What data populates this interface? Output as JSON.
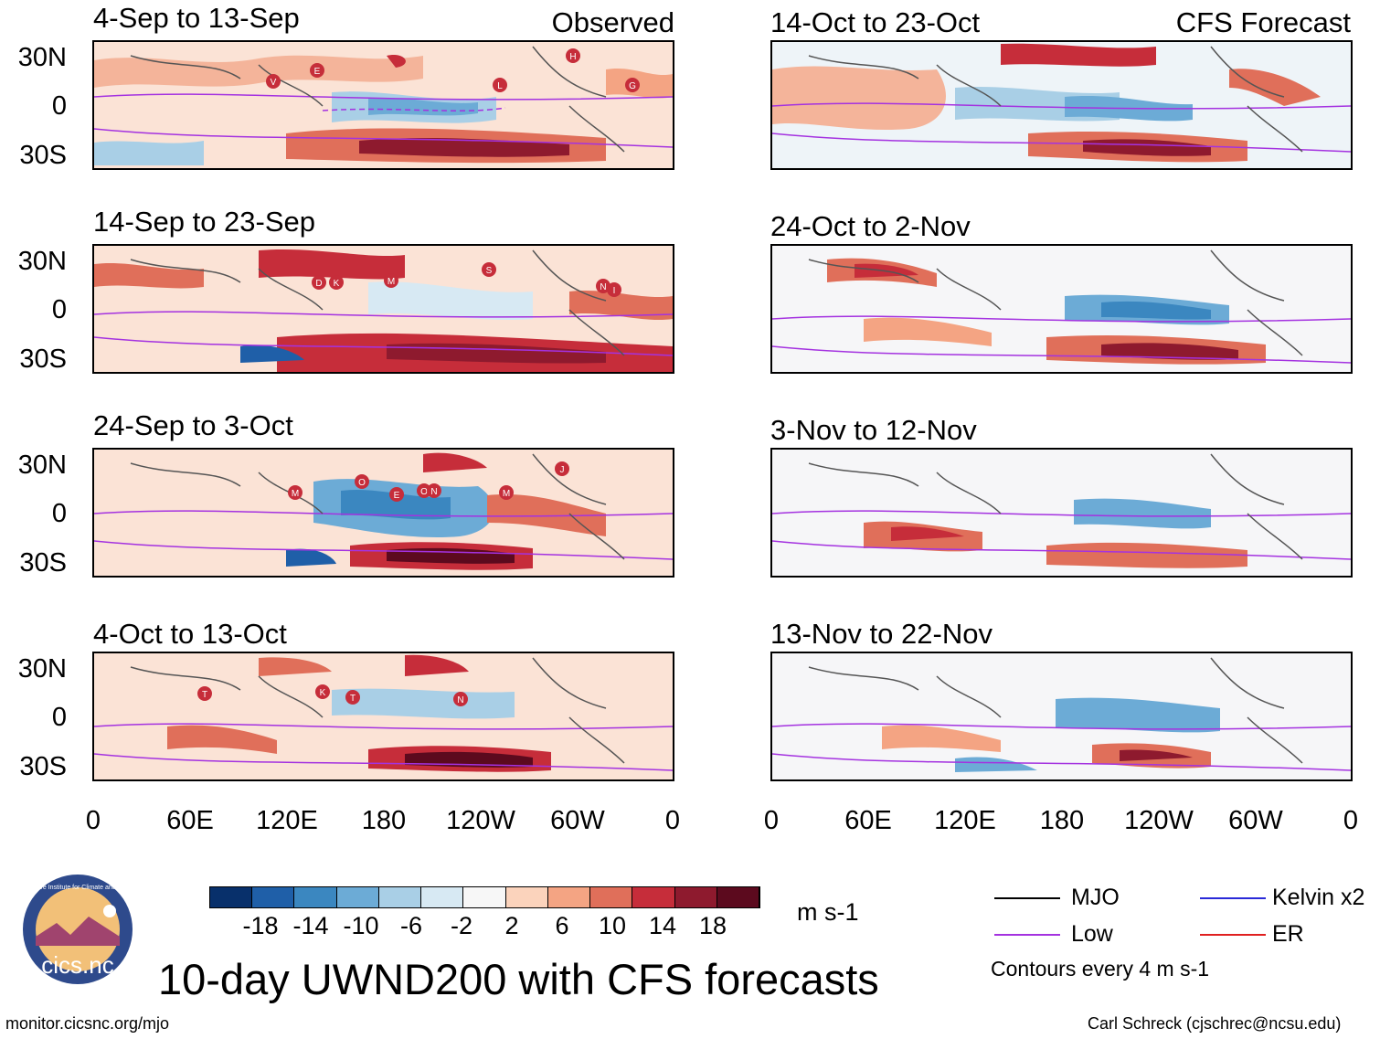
{
  "panels": {
    "left": [
      {
        "title": "4-Sep to 13-Sep",
        "tag": "Observed"
      },
      {
        "title": "14-Sep to 23-Sep"
      },
      {
        "title": "24-Sep to 3-Oct"
      },
      {
        "title": "4-Oct to 13-Oct"
      }
    ],
    "right": [
      {
        "title": "14-Oct to 23-Oct",
        "tag": "CFS Forecast"
      },
      {
        "title": "24-Oct to 2-Nov"
      },
      {
        "title": "3-Nov to 12-Nov"
      },
      {
        "title": "13-Nov to 22-Nov"
      }
    ]
  },
  "lat_labels": [
    "30N",
    "0",
    "30S"
  ],
  "lon_labels": [
    "0",
    "60E",
    "120E",
    "180",
    "120W",
    "60W",
    "0"
  ],
  "storms": {
    "p1": [
      "V",
      "E",
      "L",
      "H",
      "G"
    ],
    "p2": [
      "D",
      "K",
      "M",
      "S",
      "N",
      "I"
    ],
    "p3": [
      "M",
      "O",
      "E",
      "O",
      "N",
      "M",
      "J"
    ],
    "p4": [
      "T",
      "K",
      "T",
      "N"
    ]
  },
  "colorbar": {
    "ticks": [
      "-18",
      "-14",
      "-10",
      "-6",
      "-2",
      "2",
      "6",
      "10",
      "14",
      "18"
    ],
    "units": "m s-1",
    "colors": [
      "#08306b",
      "#1f5fa8",
      "#3b87c0",
      "#6cabd6",
      "#a9cfe6",
      "#d7e9f3",
      "#f7f7f7",
      "#fbd3bc",
      "#f4a483",
      "#e06f5a",
      "#c62d3a",
      "#8e1a2e",
      "#5c0a1e"
    ]
  },
  "legend": {
    "mjo": "MJO",
    "kelvin": "Kelvin x2",
    "low": "Low",
    "er": "ER",
    "contours": "Contours every 4 m s-1",
    "colors": {
      "mjo": "#000000",
      "kelvin": "#2a2ad8",
      "low": "#a432e0",
      "er": "#e02020"
    }
  },
  "main_title": "10-day UWND200 with CFS forecasts",
  "logo_text": "cics.nc",
  "logo_ring_text": "Cooperative Institute for Climate and Satellites",
  "footer": {
    "left": "monitor.cicsnc.org/mjo",
    "right": "Carl Schreck (cjschrec@ncsu.edu)"
  }
}
